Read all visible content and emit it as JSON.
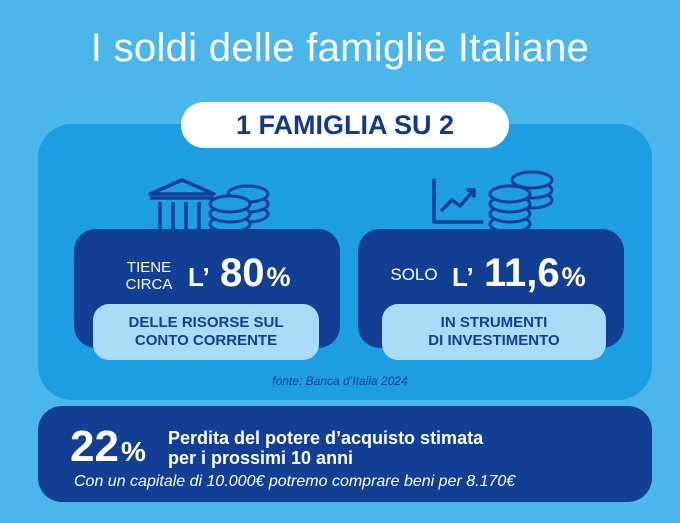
{
  "title": "I soldi delle famiglie Italiane",
  "headline": "1 FAMIGLIA SU 2",
  "left_card": {
    "prefix_line1": "TIENE",
    "prefix_line2": "CIRCA",
    "l_mark": "L’",
    "number": "80",
    "percent": "%",
    "sub_line1": "DELLE RISORSE SUL",
    "sub_line2": "CONTO CORRENTE",
    "icon": "bank-coins-icon"
  },
  "right_card": {
    "prefix": "SOLO",
    "l_mark": "L’",
    "number": "11,6",
    "percent": "%",
    "sub_line1": "IN  STRUMENTI",
    "sub_line2": "DI INVESTIMENTO",
    "icon": "chart-coins-icon"
  },
  "source": "fonte: Banca d’Italia 2024",
  "bottom": {
    "number": "22",
    "percent": "%",
    "label_line1": "Perdita del potere d’acquisto stimata",
    "label_line2": "per i  prossimi 10 anni",
    "note": "Con un capitale di 10.000€ potremo comprare beni per 8.170€"
  },
  "colors": {
    "background": "#4bb6ea",
    "panel": "#1e9ee2",
    "dark_blue": "#123f94",
    "light_blue": "#a9ddf7",
    "white": "#ffffff"
  }
}
